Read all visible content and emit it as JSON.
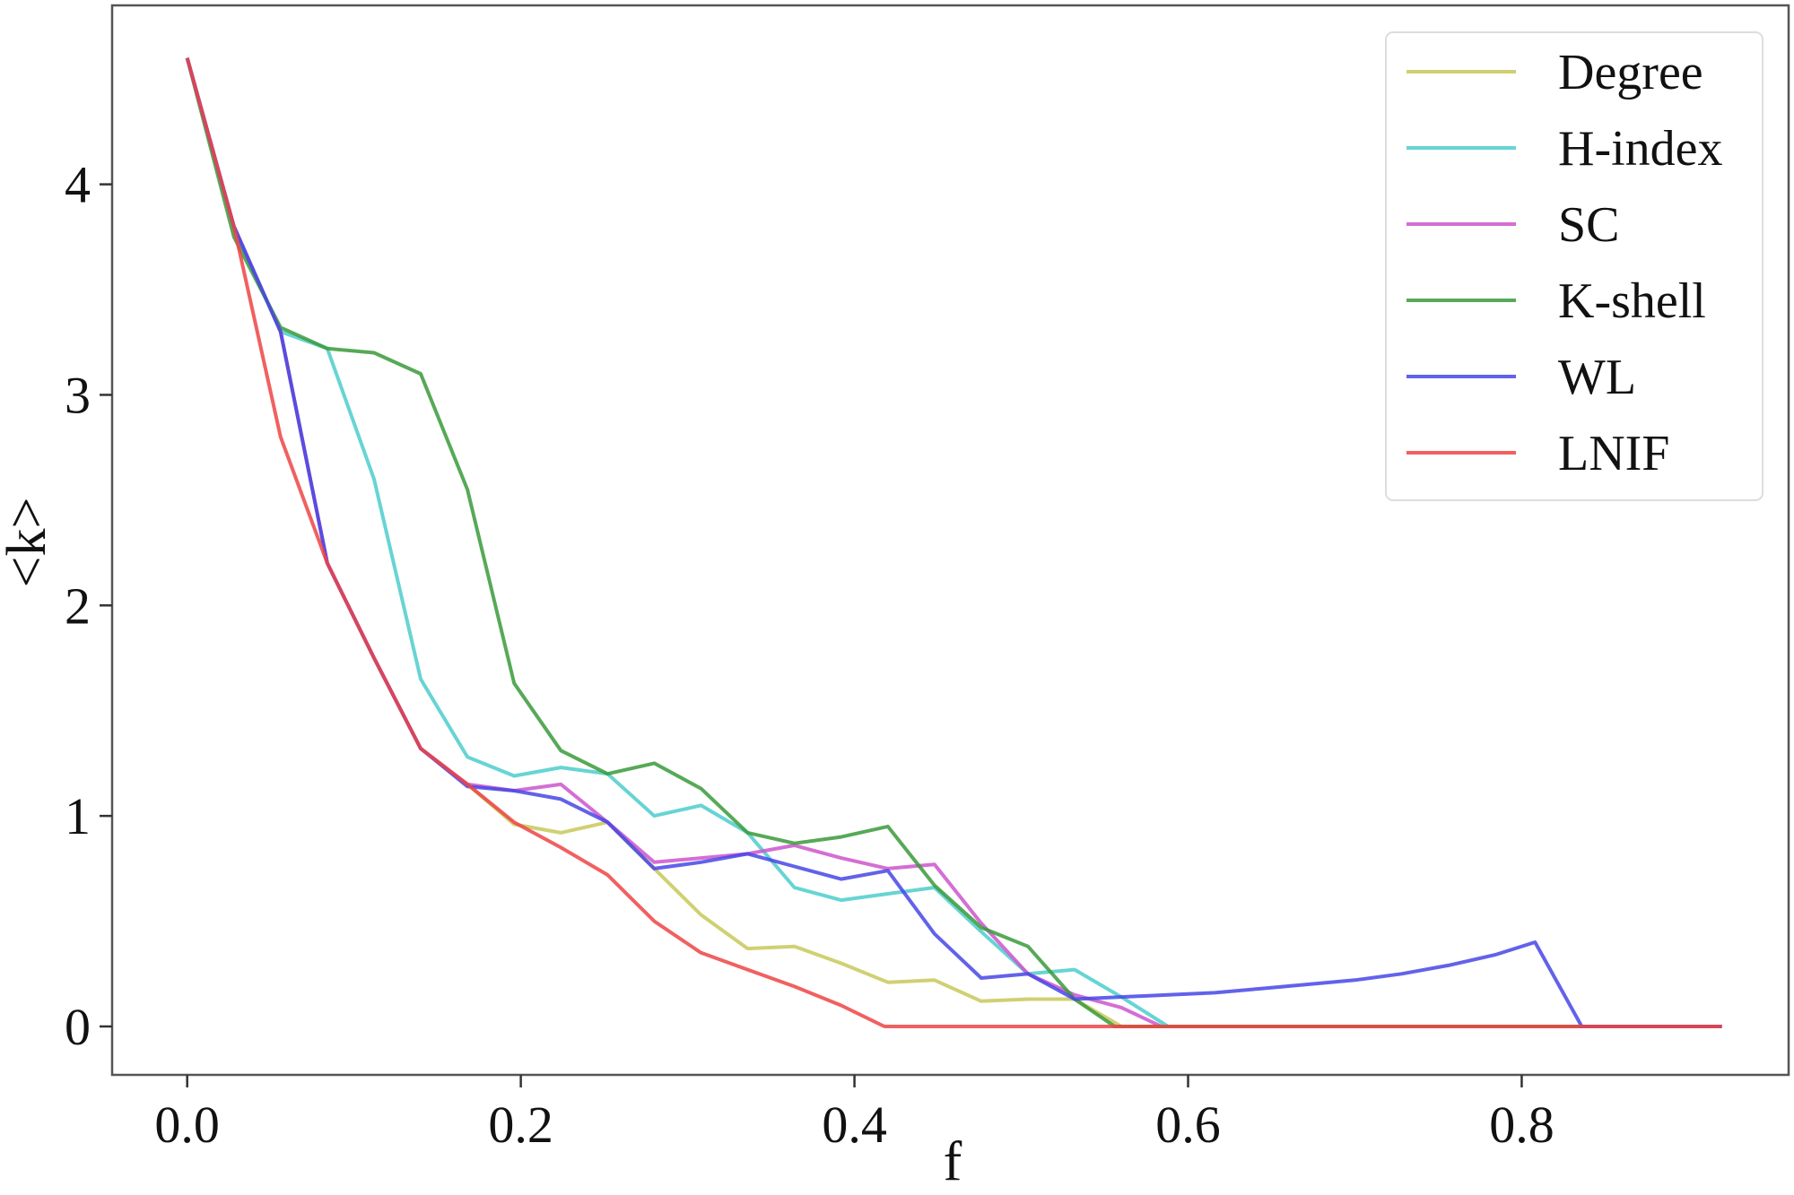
{
  "chart_data": {
    "type": "line",
    "xlabel": "f",
    "ylabel": "<k>",
    "xlim": [
      -0.045,
      0.96
    ],
    "ylim": [
      -0.23,
      4.85
    ],
    "xticks": [
      0.0,
      0.2,
      0.4,
      0.6,
      0.8
    ],
    "xtick_labels": [
      "0.0",
      "0.2",
      "0.4",
      "0.6",
      "0.8"
    ],
    "yticks": [
      0,
      1,
      2,
      3,
      4
    ],
    "ytick_labels": [
      "0",
      "1",
      "2",
      "3",
      "4"
    ],
    "grid": false,
    "legend_position": "top-right",
    "series": [
      {
        "name": "Degree",
        "color": "#c8c85a",
        "points": [
          [
            0.0,
            4.6
          ],
          [
            0.028,
            3.8
          ],
          [
            0.056,
            3.3
          ],
          [
            0.084,
            2.2
          ],
          [
            0.112,
            1.75
          ],
          [
            0.14,
            1.32
          ],
          [
            0.168,
            1.15
          ],
          [
            0.196,
            0.96
          ],
          [
            0.224,
            0.92
          ],
          [
            0.252,
            0.97
          ],
          [
            0.28,
            0.75
          ],
          [
            0.308,
            0.53
          ],
          [
            0.336,
            0.37
          ],
          [
            0.364,
            0.38
          ],
          [
            0.392,
            0.3
          ],
          [
            0.42,
            0.21
          ],
          [
            0.448,
            0.22
          ],
          [
            0.476,
            0.12
          ],
          [
            0.504,
            0.13
          ],
          [
            0.532,
            0.13
          ],
          [
            0.56,
            0.0
          ],
          [
            0.92,
            0.0
          ]
        ]
      },
      {
        "name": "H-index",
        "color": "#4ccccc",
        "points": [
          [
            0.0,
            4.6
          ],
          [
            0.028,
            3.8
          ],
          [
            0.056,
            3.3
          ],
          [
            0.084,
            3.22
          ],
          [
            0.112,
            2.6
          ],
          [
            0.14,
            1.65
          ],
          [
            0.168,
            1.28
          ],
          [
            0.196,
            1.19
          ],
          [
            0.224,
            1.23
          ],
          [
            0.252,
            1.2
          ],
          [
            0.28,
            1.0
          ],
          [
            0.308,
            1.05
          ],
          [
            0.336,
            0.92
          ],
          [
            0.364,
            0.66
          ],
          [
            0.392,
            0.6
          ],
          [
            0.42,
            0.63
          ],
          [
            0.448,
            0.66
          ],
          [
            0.476,
            0.45
          ],
          [
            0.504,
            0.25
          ],
          [
            0.532,
            0.27
          ],
          [
            0.56,
            0.14
          ],
          [
            0.588,
            0.0
          ],
          [
            0.92,
            0.0
          ]
        ]
      },
      {
        "name": "SC",
        "color": "#cc55cc",
        "points": [
          [
            0.0,
            4.6
          ],
          [
            0.028,
            3.8
          ],
          [
            0.056,
            3.3
          ],
          [
            0.084,
            2.2
          ],
          [
            0.112,
            1.75
          ],
          [
            0.14,
            1.32
          ],
          [
            0.168,
            1.15
          ],
          [
            0.196,
            1.12
          ],
          [
            0.224,
            1.15
          ],
          [
            0.252,
            0.97
          ],
          [
            0.28,
            0.78
          ],
          [
            0.308,
            0.8
          ],
          [
            0.336,
            0.82
          ],
          [
            0.364,
            0.86
          ],
          [
            0.392,
            0.8
          ],
          [
            0.42,
            0.75
          ],
          [
            0.448,
            0.77
          ],
          [
            0.476,
            0.49
          ],
          [
            0.504,
            0.25
          ],
          [
            0.532,
            0.15
          ],
          [
            0.56,
            0.09
          ],
          [
            0.584,
            0.0
          ],
          [
            0.92,
            0.0
          ]
        ]
      },
      {
        "name": "K-shell",
        "color": "#3a9a3a",
        "points": [
          [
            0.0,
            4.6
          ],
          [
            0.028,
            3.75
          ],
          [
            0.056,
            3.32
          ],
          [
            0.084,
            3.22
          ],
          [
            0.112,
            3.2
          ],
          [
            0.14,
            3.1
          ],
          [
            0.168,
            2.55
          ],
          [
            0.196,
            1.63
          ],
          [
            0.224,
            1.31
          ],
          [
            0.252,
            1.2
          ],
          [
            0.28,
            1.25
          ],
          [
            0.308,
            1.13
          ],
          [
            0.336,
            0.92
          ],
          [
            0.364,
            0.87
          ],
          [
            0.392,
            0.9
          ],
          [
            0.42,
            0.95
          ],
          [
            0.448,
            0.67
          ],
          [
            0.476,
            0.47
          ],
          [
            0.504,
            0.38
          ],
          [
            0.532,
            0.13
          ],
          [
            0.556,
            0.0
          ],
          [
            0.92,
            0.0
          ]
        ]
      },
      {
        "name": "WL",
        "color": "#4646e6",
        "points": [
          [
            0.0,
            4.6
          ],
          [
            0.028,
            3.8
          ],
          [
            0.056,
            3.3
          ],
          [
            0.084,
            2.2
          ],
          [
            0.112,
            1.75
          ],
          [
            0.14,
            1.32
          ],
          [
            0.168,
            1.14
          ],
          [
            0.196,
            1.12
          ],
          [
            0.224,
            1.08
          ],
          [
            0.252,
            0.97
          ],
          [
            0.28,
            0.75
          ],
          [
            0.308,
            0.78
          ],
          [
            0.336,
            0.82
          ],
          [
            0.364,
            0.76
          ],
          [
            0.392,
            0.7
          ],
          [
            0.42,
            0.74
          ],
          [
            0.448,
            0.44
          ],
          [
            0.476,
            0.23
          ],
          [
            0.504,
            0.25
          ],
          [
            0.532,
            0.13
          ],
          [
            0.56,
            0.14
          ],
          [
            0.588,
            0.15
          ],
          [
            0.616,
            0.16
          ],
          [
            0.644,
            0.18
          ],
          [
            0.672,
            0.2
          ],
          [
            0.7,
            0.22
          ],
          [
            0.728,
            0.25
          ],
          [
            0.756,
            0.29
          ],
          [
            0.784,
            0.34
          ],
          [
            0.808,
            0.4
          ],
          [
            0.836,
            0.0
          ],
          [
            0.92,
            0.0
          ]
        ]
      },
      {
        "name": "LNIF",
        "color": "#ee4444",
        "points": [
          [
            0.0,
            4.6
          ],
          [
            0.028,
            3.8
          ],
          [
            0.056,
            2.8
          ],
          [
            0.084,
            2.2
          ],
          [
            0.112,
            1.75
          ],
          [
            0.14,
            1.32
          ],
          [
            0.168,
            1.15
          ],
          [
            0.196,
            0.97
          ],
          [
            0.224,
            0.85
          ],
          [
            0.252,
            0.72
          ],
          [
            0.28,
            0.5
          ],
          [
            0.308,
            0.35
          ],
          [
            0.336,
            0.27
          ],
          [
            0.364,
            0.19
          ],
          [
            0.392,
            0.1
          ],
          [
            0.418,
            0.0
          ],
          [
            0.92,
            0.0
          ]
        ]
      }
    ]
  }
}
